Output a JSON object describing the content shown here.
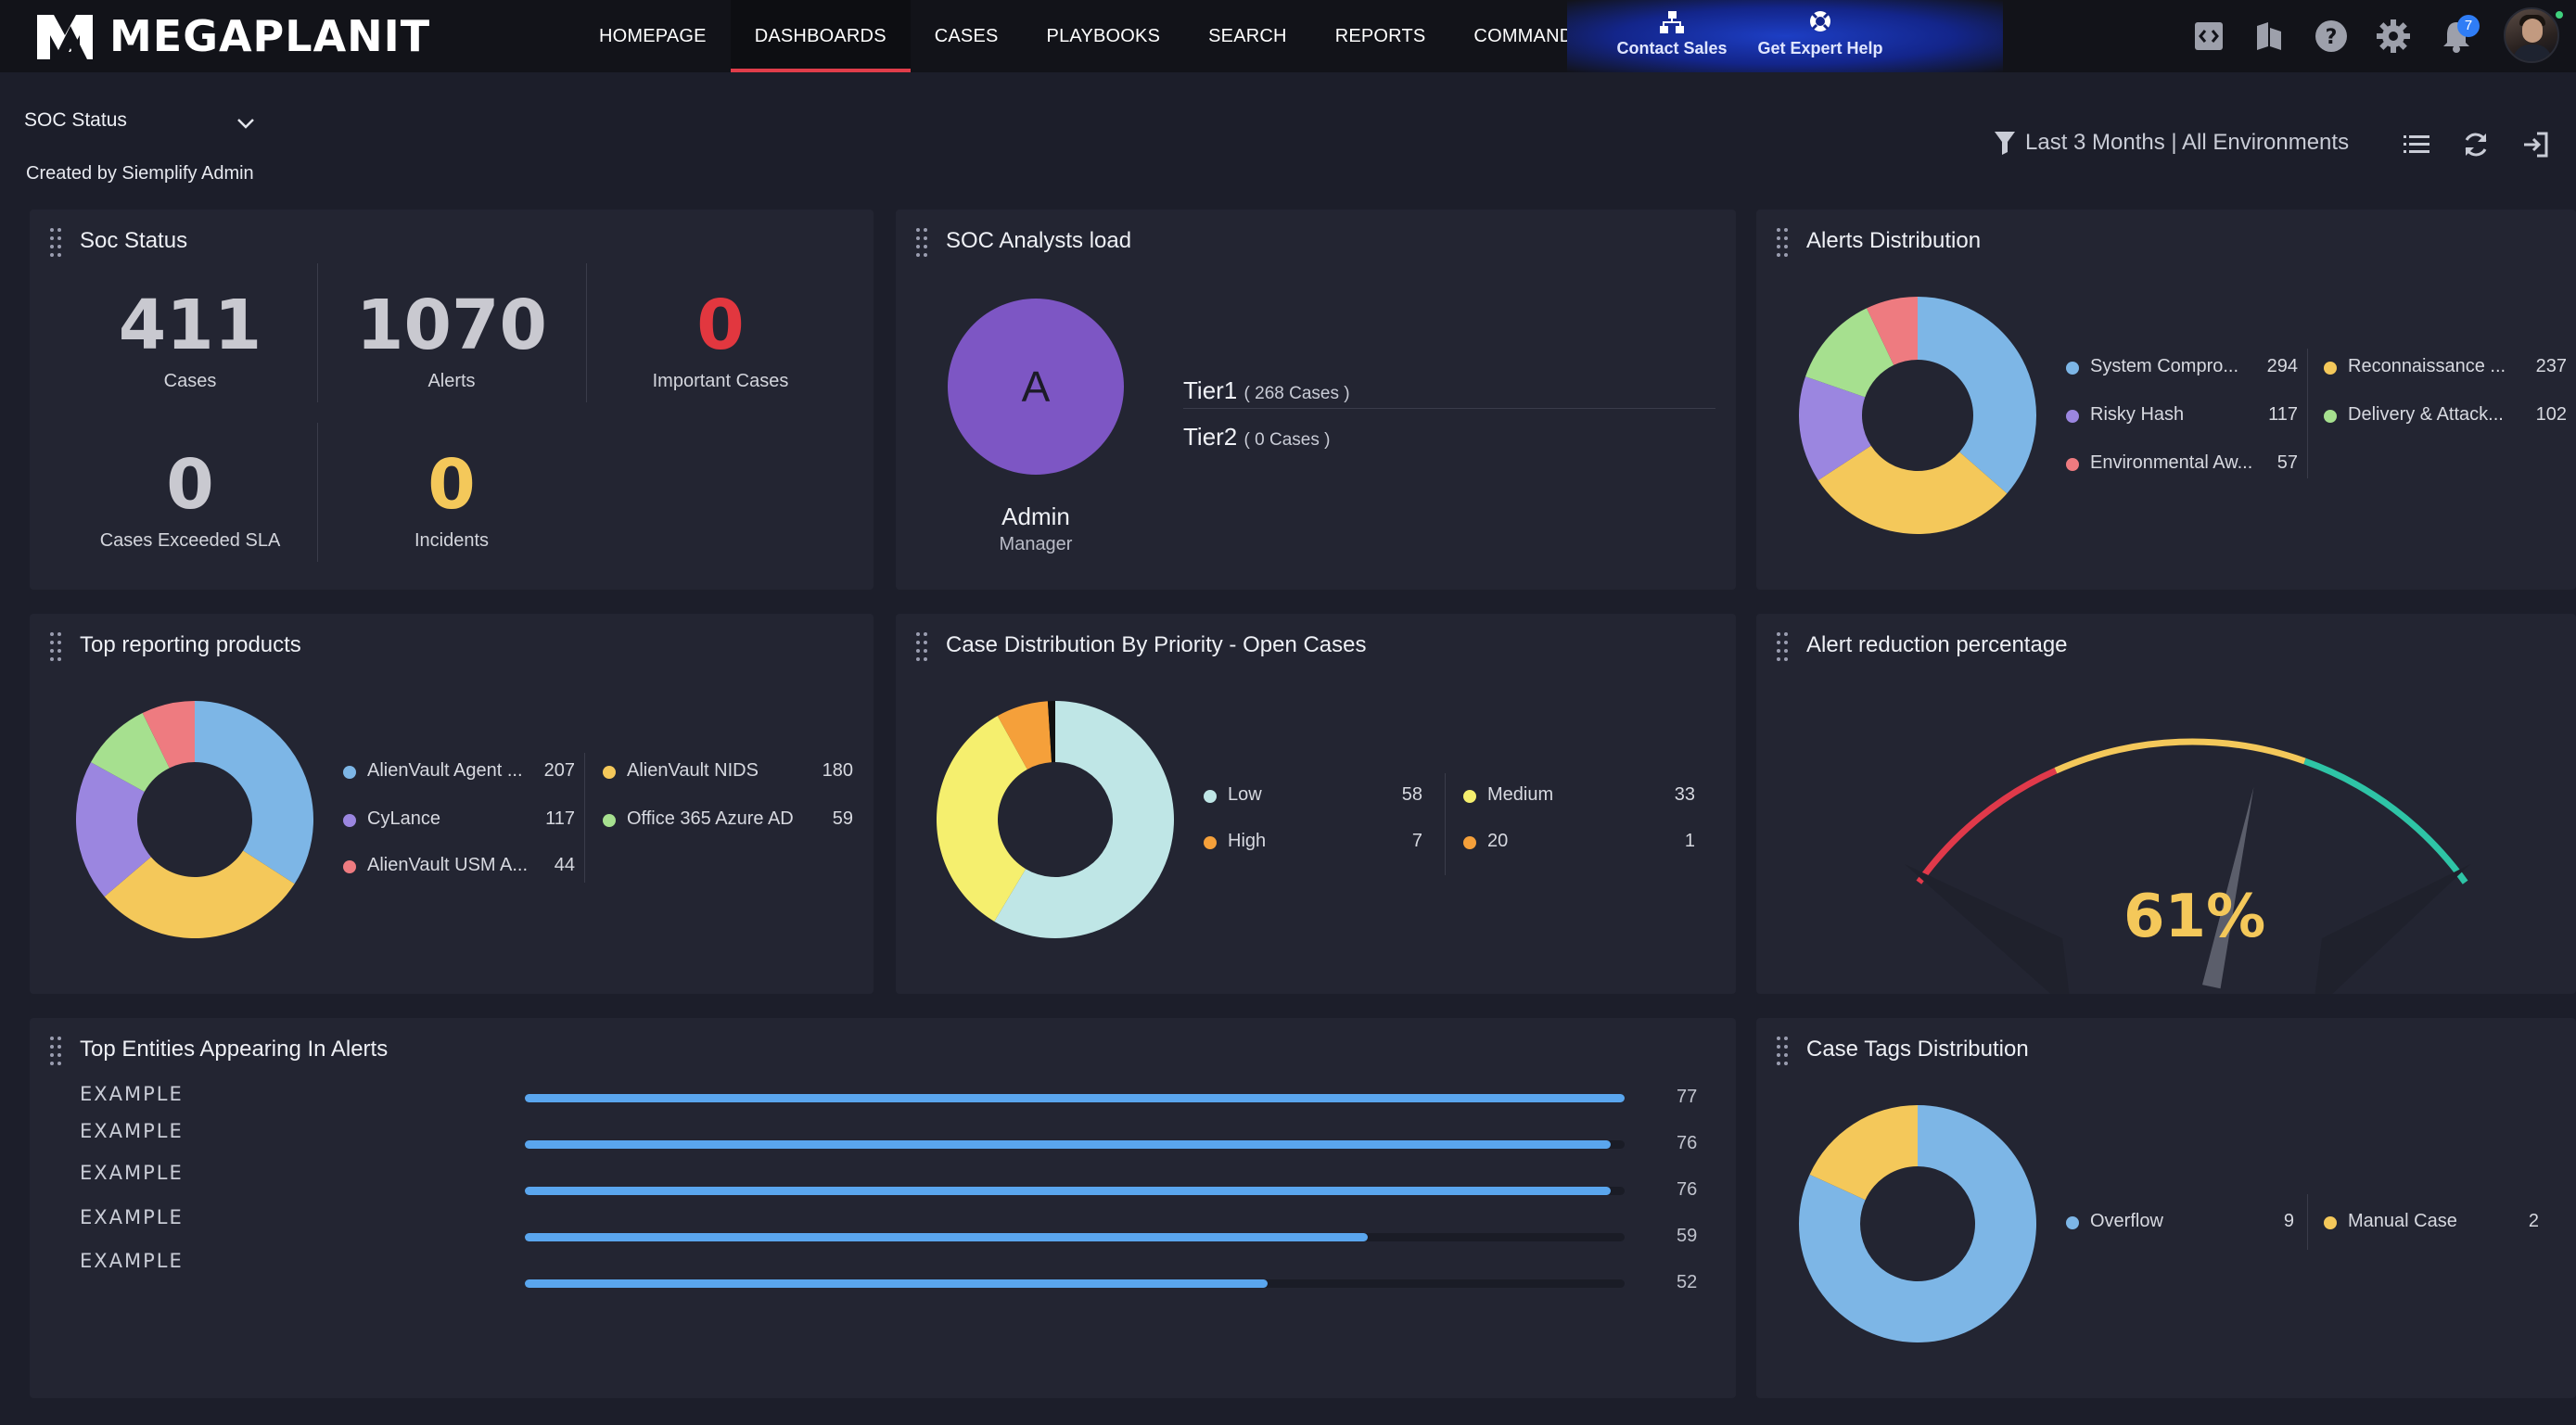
{
  "brand": {
    "name": "MEGAPLANIT"
  },
  "nav": [
    "HOMEPAGE",
    "DASHBOARDS",
    "CASES",
    "PLAYBOOKS",
    "SEARCH",
    "REPORTS",
    "COMMAND CENTER"
  ],
  "nav_active": "DASHBOARDS",
  "promo": {
    "contact": "Contact Sales",
    "help": "Get Expert Help"
  },
  "toolbar": {
    "notifications_count": "7",
    "icons": [
      "code-icon",
      "marketplace-icon",
      "help-icon",
      "gear-icon",
      "bell-icon"
    ]
  },
  "dashboard": {
    "selected": "SOC Status",
    "created_by": "Created by Siemplify Admin",
    "filter": "Last 3 Months | All Environments"
  },
  "soc_status": {
    "title": "Soc Status",
    "stats": [
      {
        "value": "411",
        "label": "Cases",
        "color": "#c9c9d0"
      },
      {
        "value": "1070",
        "label": "Alerts",
        "color": "#c9c9d0"
      },
      {
        "value": "0",
        "label": "Important Cases",
        "color": "#e2373f"
      },
      {
        "value": "0",
        "label": "Cases Exceeded SLA",
        "color": "#c9c9d0"
      },
      {
        "value": "0",
        "label": "Incidents",
        "color": "#f4c85a"
      }
    ]
  },
  "analysts": {
    "title": "SOC Analysts load",
    "initial": "A",
    "name": "Admin",
    "role": "Manager",
    "tiers": [
      {
        "name": "Tier1",
        "count": "( 268 Cases )"
      },
      {
        "name": "Tier2",
        "count": "( 0 Cases )"
      }
    ]
  },
  "alerts_distribution": {
    "title": "Alerts Distribution",
    "items": [
      {
        "label": "System Compro...",
        "value": 294,
        "color": "#7db6e6"
      },
      {
        "label": "Reconnaissance ...",
        "value": 237,
        "color": "#f4c85a"
      },
      {
        "label": "Risky Hash",
        "value": 117,
        "color": "#9b86e0"
      },
      {
        "label": "Delivery & Attack...",
        "value": 102,
        "color": "#a6e08f"
      },
      {
        "label": "Environmental Aw...",
        "value": 57,
        "color": "#ee7b80"
      }
    ]
  },
  "top_products": {
    "title": "Top reporting products",
    "items": [
      {
        "label": "AlienVault Agent ...",
        "value": 207,
        "color": "#7db6e6"
      },
      {
        "label": "AlienVault NIDS",
        "value": 180,
        "color": "#f4c85a"
      },
      {
        "label": "CyLance",
        "value": 117,
        "color": "#9b86e0"
      },
      {
        "label": "Office 365 Azure AD",
        "value": 59,
        "color": "#a6e08f"
      },
      {
        "label": "AlienVault USM A...",
        "value": 44,
        "color": "#ee7b80"
      }
    ]
  },
  "priority": {
    "title": "Case Distribution By Priority - Open Cases",
    "items": [
      {
        "label": "Low",
        "value": 58,
        "color": "#bfe6e6"
      },
      {
        "label": "Medium",
        "value": 33,
        "color": "#f5ef6e"
      },
      {
        "label": "High",
        "value": 7,
        "color": "#f5a03a"
      },
      {
        "label": "20",
        "value": 1,
        "color": "#111111",
        "dot_color": "#f5a03a"
      }
    ]
  },
  "alert_reduction": {
    "title": "Alert reduction percentage",
    "value": 61,
    "display": "61%"
  },
  "entities": {
    "title": "Top Entities Appearing In Alerts",
    "max": 77,
    "items": [
      {
        "label": "EXAMPLE",
        "value": 77
      },
      {
        "label": "EXAMPLE",
        "value": 76
      },
      {
        "label": "EXAMPLE",
        "value": 76
      },
      {
        "label": "EXAMPLE",
        "value": 59
      },
      {
        "label": "EXAMPLE",
        "value": 52
      }
    ]
  },
  "case_tags": {
    "title": "Case Tags Distribution",
    "items": [
      {
        "label": "Overflow",
        "value": 9,
        "color": "#7db6e6"
      },
      {
        "label": "Manual Case",
        "value": 2,
        "color": "#f4c85a"
      }
    ]
  }
}
